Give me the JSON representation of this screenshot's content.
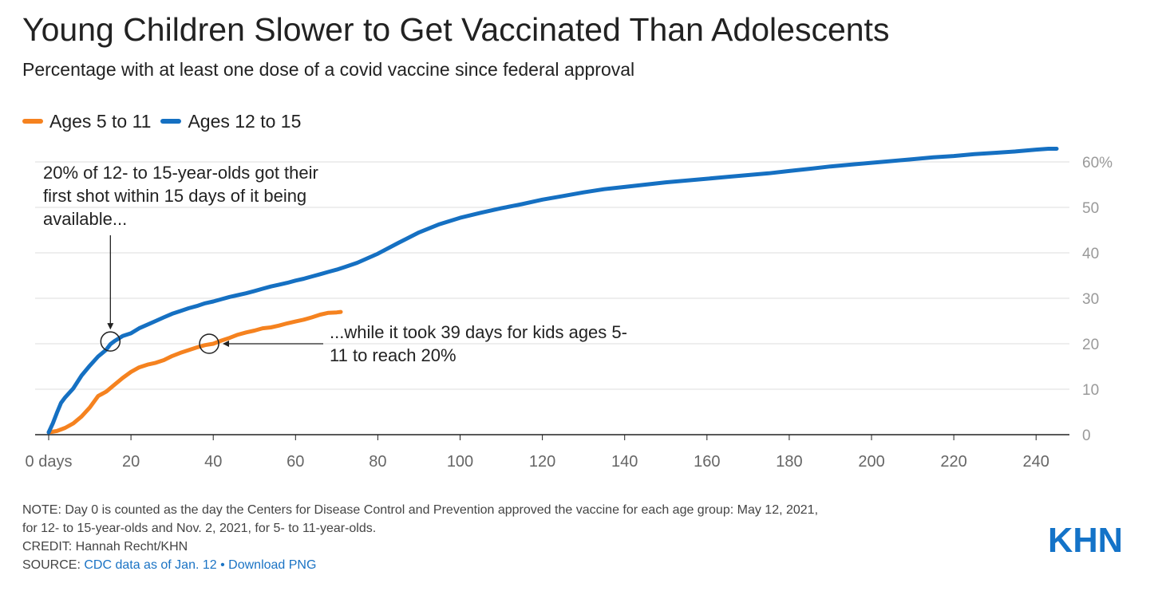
{
  "colors": {
    "ages_5_11": "#f5821f",
    "ages_12_15": "#1570c2",
    "grid": "#dddddd",
    "axis": "#222222",
    "tick_label": "#999999",
    "link": "#1a73c4",
    "logo": "#1473c8"
  },
  "chart_data": {
    "type": "line",
    "title": "Young Children Slower to Get Vaccinated Than Adolescents",
    "subtitle": "Percentage with at least one dose of a covid vaccine since federal approval",
    "xlabel": "",
    "ylabel": "",
    "xlim": [
      0,
      246
    ],
    "ylim": [
      0,
      62.5
    ],
    "grid": true,
    "legend_position": "top-left",
    "x_ticks": [
      0,
      20,
      40,
      60,
      80,
      100,
      120,
      140,
      160,
      180,
      200,
      220,
      240
    ],
    "x_tick_labels": [
      "0 days",
      "20",
      "40",
      "60",
      "80",
      "100",
      "120",
      "140",
      "160",
      "180",
      "200",
      "220",
      "240"
    ],
    "y_ticks": [
      0,
      10,
      20,
      30,
      40,
      50,
      60
    ],
    "y_tick_labels": [
      "0",
      "10",
      "20",
      "30",
      "40",
      "50",
      "60%"
    ],
    "series": [
      {
        "name": "Ages 5 to 11",
        "color": "#f5821f",
        "x": [
          0,
          2,
          4,
          6,
          8,
          10,
          12,
          14,
          16,
          18,
          20,
          22,
          24,
          26,
          28,
          30,
          32,
          34,
          36,
          38,
          40,
          42,
          44,
          46,
          48,
          50,
          52,
          54,
          56,
          58,
          60,
          62,
          64,
          66,
          68,
          70,
          71
        ],
        "y": [
          0.5,
          0.8,
          1.5,
          2.5,
          4.0,
          6.0,
          8.5,
          9.5,
          11.0,
          12.5,
          13.8,
          14.8,
          15.4,
          15.8,
          16.4,
          17.3,
          18.0,
          18.6,
          19.2,
          19.7,
          20.0,
          20.7,
          21.3,
          22.0,
          22.5,
          22.9,
          23.4,
          23.6,
          24.0,
          24.5,
          24.9,
          25.3,
          25.8,
          26.4,
          26.8,
          26.9,
          27.0
        ]
      },
      {
        "name": "Ages 12 to 15",
        "color": "#1570c2",
        "x": [
          0,
          1,
          2,
          3,
          4,
          6,
          8,
          10,
          12,
          14,
          15,
          16,
          18,
          20,
          22,
          24,
          26,
          28,
          30,
          32,
          34,
          36,
          38,
          40,
          42,
          44,
          46,
          48,
          50,
          52,
          54,
          56,
          58,
          60,
          62,
          64,
          66,
          68,
          70,
          72,
          75,
          80,
          85,
          90,
          95,
          100,
          105,
          110,
          115,
          120,
          125,
          130,
          135,
          140,
          145,
          150,
          155,
          160,
          165,
          170,
          175,
          180,
          185,
          190,
          195,
          200,
          205,
          210,
          215,
          220,
          225,
          230,
          235,
          240,
          243,
          245
        ],
        "y": [
          0.5,
          2.5,
          4.8,
          7.0,
          8.2,
          10.2,
          13.0,
          15.2,
          17.2,
          18.7,
          19.9,
          20.6,
          21.7,
          22.3,
          23.4,
          24.2,
          25.0,
          25.8,
          26.6,
          27.2,
          27.8,
          28.3,
          28.9,
          29.3,
          29.8,
          30.3,
          30.7,
          31.1,
          31.6,
          32.1,
          32.6,
          33.0,
          33.4,
          33.9,
          34.3,
          34.8,
          35.3,
          35.8,
          36.3,
          36.9,
          37.8,
          39.8,
          42.2,
          44.5,
          46.3,
          47.7,
          48.8,
          49.8,
          50.7,
          51.7,
          52.5,
          53.3,
          54.0,
          54.5,
          55.0,
          55.5,
          55.9,
          56.3,
          56.7,
          57.1,
          57.5,
          58.0,
          58.5,
          59.0,
          59.4,
          59.8,
          60.2,
          60.6,
          61.0,
          61.3,
          61.7,
          62.0,
          62.3,
          62.7,
          62.9,
          62.9
        ]
      }
    ],
    "annotations": [
      {
        "lines": [
          "20% of 12- to 15-year-olds got their",
          "first shot within 15 days of it being",
          "available..."
        ],
        "point": [
          15,
          20.5
        ]
      },
      {
        "lines": [
          "...while it took 39 days for kids ages 5-",
          "11 to reach 20%"
        ],
        "point": [
          39,
          20.0
        ]
      }
    ]
  },
  "notes": {
    "note": "NOTE: Day 0 is counted as the day the Centers for Disease Control and Prevention approved the vaccine for each age group: May 12, 2021,",
    "note_cont": "for 12- to 15-year-olds and Nov. 2, 2021, for 5- to 11-year-olds.",
    "credit": "CREDIT: Hannah Recht/KHN",
    "source_label": "SOURCE: ",
    "source_link": "CDC data as of Jan. 12",
    "separator": " • ",
    "download_link": "Download PNG"
  },
  "logo": {
    "text": "KHN"
  }
}
